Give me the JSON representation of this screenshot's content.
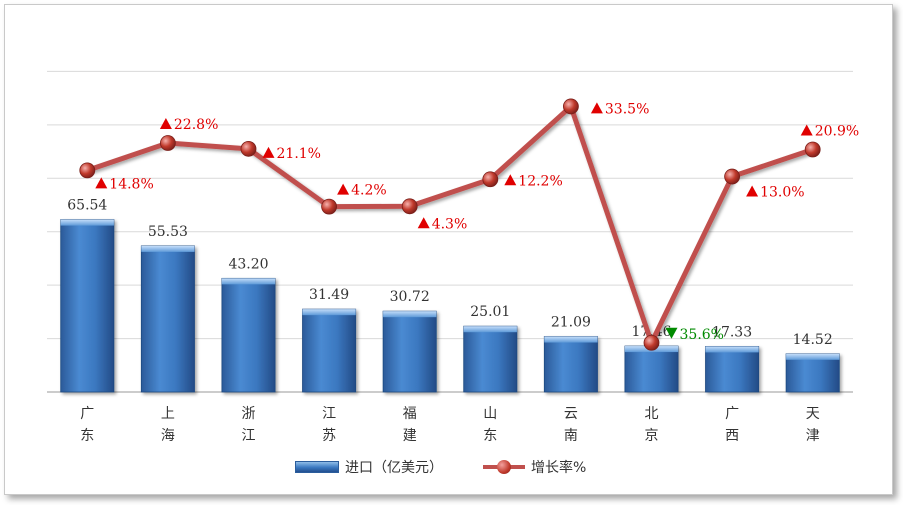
{
  "colors": {
    "bar": "#3a78c0",
    "line": "#c0504d",
    "up": "#e00000",
    "down": "#008a00",
    "grid": "#d9d9d9"
  },
  "legend": {
    "bar_label": "进口（亿美元）",
    "line_label": "增长率%"
  },
  "chart_data": {
    "type": "bar",
    "categories": [
      "广东",
      "上海",
      "浙江",
      "江苏",
      "福建",
      "山东",
      "云南",
      "北京",
      "广西",
      "天津"
    ],
    "series": [
      {
        "name": "进口（亿美元）",
        "type": "bar",
        "values": [
          65.54,
          55.53,
          43.2,
          31.49,
          30.72,
          25.01,
          21.09,
          17.46,
          17.33,
          14.52
        ],
        "labels": [
          "65.54",
          "55.53",
          "43.20",
          "31.49",
          "30.72",
          "25.01",
          "21.09",
          "17.46",
          "17.33",
          "14.52"
        ]
      },
      {
        "name": "增长率%",
        "type": "line",
        "values": [
          14.8,
          22.8,
          21.1,
          4.2,
          4.3,
          12.2,
          33.5,
          -35.6,
          13.0,
          20.9
        ],
        "labels": [
          "14.8%",
          "22.8%",
          "21.1%",
          "4.2%",
          "4.3%",
          "12.2%",
          "33.5%",
          "35.6%",
          "13.0%",
          "20.9%"
        ],
        "direction": [
          "up",
          "up",
          "up",
          "up",
          "up",
          "up",
          "up",
          "down",
          "up",
          "up"
        ]
      }
    ],
    "bar_axis": [
      0,
      130
    ],
    "line_axis": [
      -50,
      50
    ],
    "grid": true,
    "legend_position": "bottom"
  }
}
